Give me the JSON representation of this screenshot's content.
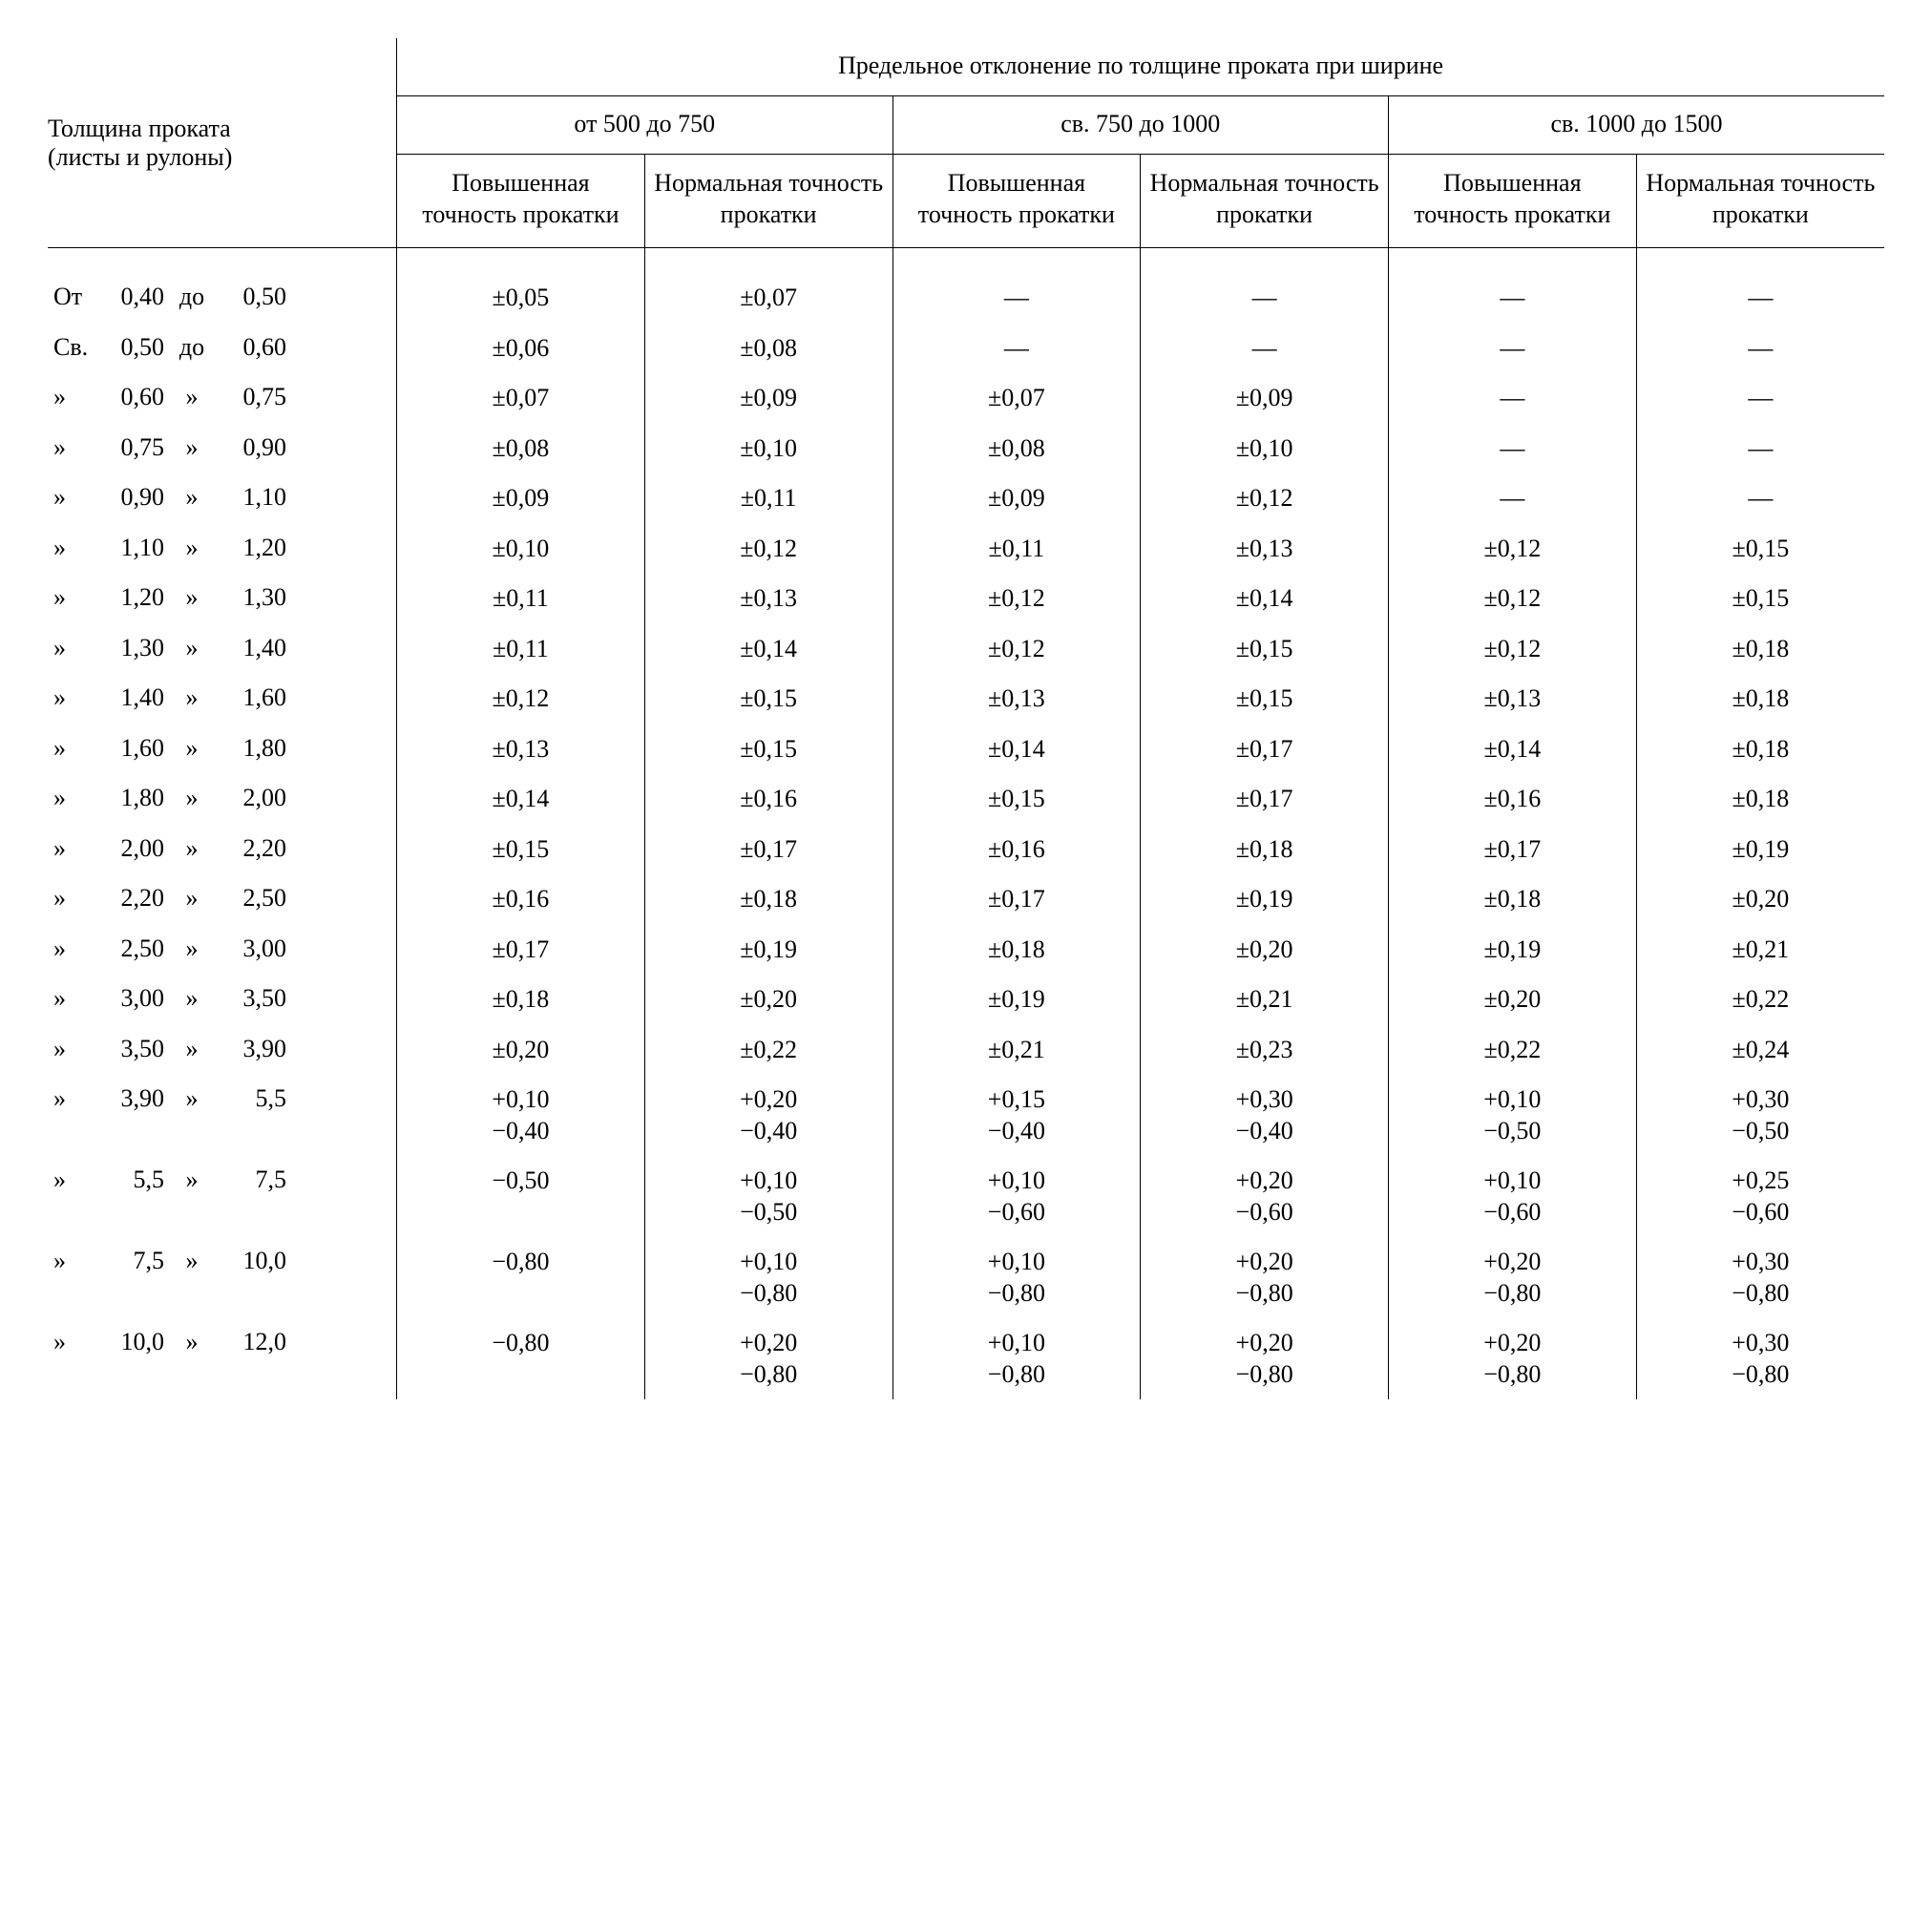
{
  "type": "table",
  "background_color": "#ffffff",
  "text_color": "#000000",
  "border_color": "#000000",
  "font_family": "Times New Roman",
  "font_size_pt": 18,
  "header": {
    "thickness_line1": "Толщина проката",
    "thickness_line2": "(листы и рулоны)",
    "top": "Предельное отклонение по толщине проката при ширине",
    "group1": "от 500 до 750",
    "group2": "св. 750 до 1000",
    "group3": "св. 1000 до 1500",
    "high": "Повышенная\nточность\nпрокатки",
    "norm": "Нормальная\nточность\nпрокатки"
  },
  "rows": [
    {
      "p": "От",
      "a": "0,40",
      "m": "до",
      "b": "0,50",
      "c1": "±0,05",
      "c2": "±0,07",
      "c3": "—",
      "c4": "—",
      "c5": "—",
      "c6": "—"
    },
    {
      "p": "Св.",
      "a": "0,50",
      "m": "до",
      "b": "0,60",
      "c1": "±0,06",
      "c2": "±0,08",
      "c3": "—",
      "c4": "—",
      "c5": "—",
      "c6": "—"
    },
    {
      "p": "»",
      "a": "0,60",
      "m": "»",
      "b": "0,75",
      "c1": "±0,07",
      "c2": "±0,09",
      "c3": "±0,07",
      "c4": "±0,09",
      "c5": "—",
      "c6": "—"
    },
    {
      "p": "»",
      "a": "0,75",
      "m": "»",
      "b": "0,90",
      "c1": "±0,08",
      "c2": "±0,10",
      "c3": "±0,08",
      "c4": "±0,10",
      "c5": "—",
      "c6": "—"
    },
    {
      "p": "»",
      "a": "0,90",
      "m": "»",
      "b": "1,10",
      "c1": "±0,09",
      "c2": "±0,11",
      "c3": "±0,09",
      "c4": "±0,12",
      "c5": "—",
      "c6": "—"
    },
    {
      "p": "»",
      "a": "1,10",
      "m": "»",
      "b": "1,20",
      "c1": "±0,10",
      "c2": "±0,12",
      "c3": "±0,11",
      "c4": "±0,13",
      "c5": "±0,12",
      "c6": "±0,15"
    },
    {
      "p": "»",
      "a": "1,20",
      "m": "»",
      "b": "1,30",
      "c1": "±0,11",
      "c2": "±0,13",
      "c3": "±0,12",
      "c4": "±0,14",
      "c5": "±0,12",
      "c6": "±0,15"
    },
    {
      "p": "»",
      "a": "1,30",
      "m": "»",
      "b": "1,40",
      "c1": "±0,11",
      "c2": "±0,14",
      "c3": "±0,12",
      "c4": "±0,15",
      "c5": "±0,12",
      "c6": "±0,18"
    },
    {
      "p": "»",
      "a": "1,40",
      "m": "»",
      "b": "1,60",
      "c1": "±0,12",
      "c2": "±0,15",
      "c3": "±0,13",
      "c4": "±0,15",
      "c5": "±0,13",
      "c6": "±0,18"
    },
    {
      "p": "»",
      "a": "1,60",
      "m": "»",
      "b": "1,80",
      "c1": "±0,13",
      "c2": "±0,15",
      "c3": "±0,14",
      "c4": "±0,17",
      "c5": "±0,14",
      "c6": "±0,18"
    },
    {
      "p": "»",
      "a": "1,80",
      "m": "»",
      "b": "2,00",
      "c1": "±0,14",
      "c2": "±0,16",
      "c3": "±0,15",
      "c4": "±0,17",
      "c5": "±0,16",
      "c6": "±0,18"
    },
    {
      "p": "»",
      "a": "2,00",
      "m": "»",
      "b": "2,20",
      "c1": "±0,15",
      "c2": "±0,17",
      "c3": "±0,16",
      "c4": "±0,18",
      "c5": "±0,17",
      "c6": "±0,19"
    },
    {
      "p": "»",
      "a": "2,20",
      "m": "»",
      "b": "2,50",
      "c1": "±0,16",
      "c2": "±0,18",
      "c3": "±0,17",
      "c4": "±0,19",
      "c5": "±0,18",
      "c6": "±0,20"
    },
    {
      "p": "»",
      "a": "2,50",
      "m": "»",
      "b": "3,00",
      "c1": "±0,17",
      "c2": "±0,19",
      "c3": "±0,18",
      "c4": "±0,20",
      "c5": "±0,19",
      "c6": "±0,21"
    },
    {
      "p": "»",
      "a": "3,00",
      "m": "»",
      "b": "3,50",
      "c1": "±0,18",
      "c2": "±0,20",
      "c3": "±0,19",
      "c4": "±0,21",
      "c5": "±0,20",
      "c6": "±0,22"
    },
    {
      "p": "»",
      "a": "3,50",
      "m": "»",
      "b": "3,90",
      "c1": "±0,20",
      "c2": "±0,22",
      "c3": "±0,21",
      "c4": "±0,23",
      "c5": "±0,22",
      "c6": "±0,24"
    },
    {
      "p": "»",
      "a": "3,90",
      "m": "»",
      "b": "5,5",
      "c1": "+0,10\n−0,40",
      "c2": "+0,20\n−0,40",
      "c3": "+0,15\n−0,40",
      "c4": "+0,30\n−0,40",
      "c5": "+0,10\n−0,50",
      "c6": "+0,30\n−0,50"
    },
    {
      "p": "»",
      "a": "5,5",
      "m": "»",
      "b": "7,5",
      "c1": "−0,50",
      "c2": "+0,10\n−0,50",
      "c3": "+0,10\n−0,60",
      "c4": "+0,20\n−0,60",
      "c5": "+0,10\n−0,60",
      "c6": "+0,25\n−0,60"
    },
    {
      "p": "»",
      "a": "7,5",
      "m": "»",
      "b": "10,0",
      "c1": "−0,80",
      "c2": "+0,10\n−0,80",
      "c3": "+0,10\n−0,80",
      "c4": "+0,20\n−0,80",
      "c5": "+0,20\n−0,80",
      "c6": "+0,30\n−0,80"
    },
    {
      "p": "»",
      "a": "10,0",
      "m": "»",
      "b": "12,0",
      "c1": "−0,80",
      "c2": "+0,20\n−0,80",
      "c3": "+0,10\n−0,80",
      "c4": "+0,20\n−0,80",
      "c5": "+0,20\n−0,80",
      "c6": "+0,30\n−0,80"
    }
  ],
  "column_widths_pct": [
    19,
    13.5,
    13.5,
    13.5,
    13.5,
    13.5,
    13.5
  ]
}
